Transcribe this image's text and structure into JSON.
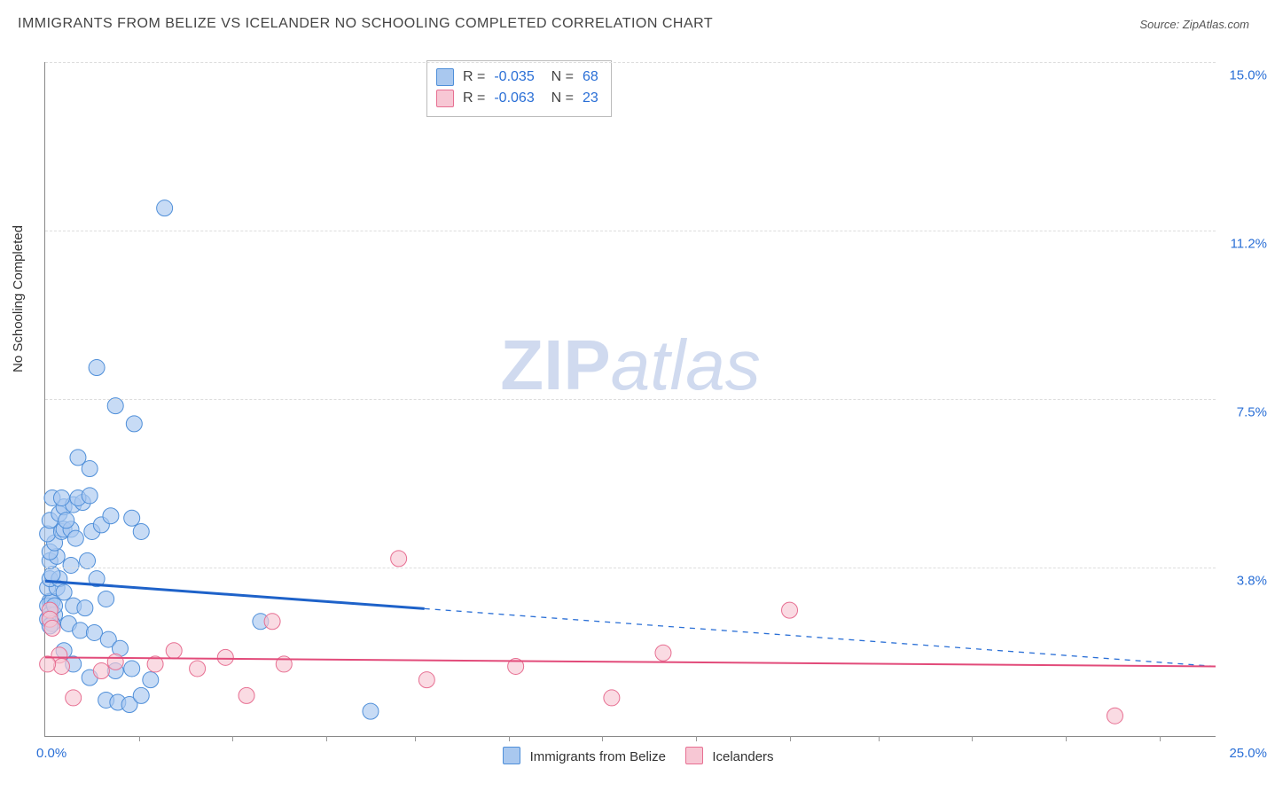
{
  "title": "IMMIGRANTS FROM BELIZE VS ICELANDER NO SCHOOLING COMPLETED CORRELATION CHART",
  "source": "Source: ZipAtlas.com",
  "ylabel": "No Schooling Completed",
  "watermark": {
    "bold": "ZIP",
    "rest": "atlas"
  },
  "chart": {
    "type": "scatter-with-trendlines",
    "background_color": "#ffffff",
    "grid_color": "#dddddd",
    "axis_color": "#888888",
    "tick_label_color": "#2a6fd6",
    "xlim": [
      0.0,
      25.0
    ],
    "ylim": [
      0.0,
      15.0
    ],
    "x_origin_label": "0.0%",
    "x_max_label": "25.0%",
    "x_tick_positions_pct": [
      2.0,
      4.0,
      6.0,
      7.9,
      9.9,
      11.9,
      13.9,
      15.9,
      17.8,
      19.8,
      21.8,
      23.8
    ],
    "y_gridlines": [
      {
        "value": 3.75,
        "label": "3.8%"
      },
      {
        "value": 7.5,
        "label": "7.5%"
      },
      {
        "value": 11.25,
        "label": "11.2%"
      },
      {
        "value": 15.0,
        "label": "15.0%"
      }
    ],
    "series": [
      {
        "name": "Immigrants from Belize",
        "marker_color": "#a9c8ef",
        "marker_stroke": "#4f8fd9",
        "marker_radius": 9,
        "marker_opacity": 0.65,
        "R": "-0.035",
        "N": "68",
        "trend": {
          "y_at_xmin": 3.45,
          "y_at_xmax": 1.55,
          "solid_until_x": 8.1,
          "solid_color": "#1e62c9",
          "solid_width": 3,
          "dash_color": "#2a6fd6",
          "dash_width": 1.3,
          "dash_pattern": "6 6"
        },
        "points": [
          [
            0.1,
            3.0
          ],
          [
            0.05,
            2.9
          ],
          [
            0.15,
            3.0
          ],
          [
            0.1,
            2.7
          ],
          [
            0.2,
            2.7
          ],
          [
            0.05,
            2.6
          ],
          [
            0.15,
            2.5
          ],
          [
            0.1,
            2.45
          ],
          [
            0.2,
            2.9
          ],
          [
            0.05,
            3.3
          ],
          [
            0.25,
            3.3
          ],
          [
            0.1,
            3.5
          ],
          [
            0.3,
            3.5
          ],
          [
            0.15,
            3.6
          ],
          [
            0.1,
            3.9
          ],
          [
            0.25,
            4.0
          ],
          [
            0.1,
            4.1
          ],
          [
            0.2,
            4.3
          ],
          [
            0.05,
            4.5
          ],
          [
            0.35,
            4.55
          ],
          [
            0.4,
            4.6
          ],
          [
            0.55,
            4.6
          ],
          [
            0.1,
            4.8
          ],
          [
            0.3,
            4.95
          ],
          [
            0.4,
            5.1
          ],
          [
            0.6,
            5.15
          ],
          [
            0.8,
            5.2
          ],
          [
            0.15,
            5.3
          ],
          [
            0.35,
            5.3
          ],
          [
            0.7,
            5.3
          ],
          [
            0.95,
            5.35
          ],
          [
            0.45,
            4.8
          ],
          [
            0.65,
            4.4
          ],
          [
            1.0,
            4.55
          ],
          [
            1.2,
            4.7
          ],
          [
            1.4,
            4.9
          ],
          [
            1.85,
            4.85
          ],
          [
            2.05,
            4.55
          ],
          [
            0.9,
            3.9
          ],
          [
            1.1,
            3.5
          ],
          [
            1.3,
            3.05
          ],
          [
            0.6,
            2.9
          ],
          [
            0.85,
            2.85
          ],
          [
            0.5,
            2.5
          ],
          [
            0.75,
            2.35
          ],
          [
            1.05,
            2.3
          ],
          [
            1.35,
            2.15
          ],
          [
            1.6,
            1.95
          ],
          [
            0.4,
            1.9
          ],
          [
            0.6,
            1.6
          ],
          [
            0.95,
            1.3
          ],
          [
            1.3,
            0.8
          ],
          [
            1.55,
            0.75
          ],
          [
            1.8,
            0.7
          ],
          [
            2.05,
            0.9
          ],
          [
            2.25,
            1.25
          ],
          [
            1.85,
            1.5
          ],
          [
            1.5,
            1.45
          ],
          [
            4.6,
            2.55
          ],
          [
            6.95,
            0.55
          ],
          [
            0.95,
            5.95
          ],
          [
            1.1,
            8.2
          ],
          [
            1.9,
            6.95
          ],
          [
            0.7,
            6.2
          ],
          [
            1.5,
            7.35
          ],
          [
            2.55,
            11.75
          ],
          [
            0.4,
            3.2
          ],
          [
            0.55,
            3.8
          ]
        ]
      },
      {
        "name": "Icelanders",
        "marker_color": "#f7c7d4",
        "marker_stroke": "#e76f92",
        "marker_radius": 9,
        "marker_opacity": 0.65,
        "R": "-0.063",
        "N": "23",
        "trend": {
          "y_at_xmin": 1.75,
          "y_at_xmax": 1.55,
          "solid_until_x": 25.0,
          "solid_color": "#e24b7a",
          "solid_width": 2,
          "dash_color": "#e24b7a",
          "dash_width": 0,
          "dash_pattern": ""
        },
        "points": [
          [
            0.1,
            2.8
          ],
          [
            0.1,
            2.6
          ],
          [
            0.15,
            2.4
          ],
          [
            0.3,
            1.8
          ],
          [
            0.35,
            1.55
          ],
          [
            0.05,
            1.6
          ],
          [
            0.6,
            0.85
          ],
          [
            1.2,
            1.45
          ],
          [
            1.5,
            1.65
          ],
          [
            2.35,
            1.6
          ],
          [
            3.25,
            1.5
          ],
          [
            4.85,
            2.55
          ],
          [
            5.1,
            1.6
          ],
          [
            4.3,
            0.9
          ],
          [
            7.55,
            3.95
          ],
          [
            8.15,
            1.25
          ],
          [
            10.05,
            1.55
          ],
          [
            12.1,
            0.85
          ],
          [
            13.2,
            1.85
          ],
          [
            15.9,
            2.8
          ],
          [
            22.85,
            0.45
          ],
          [
            2.75,
            1.9
          ],
          [
            3.85,
            1.75
          ]
        ]
      }
    ],
    "bottom_legend": [
      {
        "swatch_fill": "#a9c8ef",
        "swatch_stroke": "#4f8fd9",
        "label": "Immigrants from Belize"
      },
      {
        "swatch_fill": "#f7c7d4",
        "swatch_stroke": "#e76f92",
        "label": "Icelanders"
      }
    ]
  }
}
